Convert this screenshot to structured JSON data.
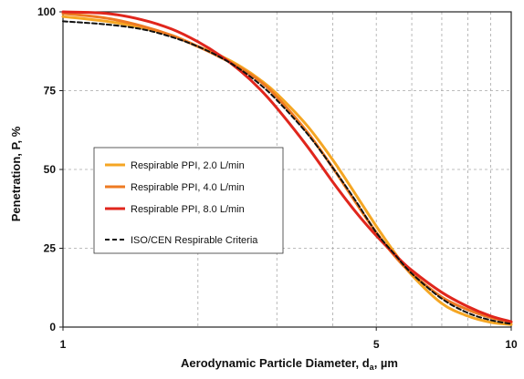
{
  "chart_data": {
    "type": "line",
    "title": "",
    "xlabel": "Aerodynamic Particle Diameter, d",
    "xlabel_subscript": "a",
    "xlabel_unit": ", µm",
    "ylabel": "Penetration, P, %",
    "x_scale": "log",
    "xlim": [
      1,
      10
    ],
    "ylim": [
      0,
      100
    ],
    "x_ticks": [
      1,
      5,
      10
    ],
    "x_tick_labels": [
      "1",
      "5",
      "10"
    ],
    "x_minor_gridlines": [
      2,
      3,
      4,
      6,
      7,
      8,
      9
    ],
    "y_ticks": [
      0,
      25,
      50,
      75,
      100
    ],
    "y_tick_labels": [
      "0",
      "25",
      "50",
      "75",
      "100"
    ],
    "grid": true,
    "legend_position": "center-left",
    "series": [
      {
        "name": "Respirable PPI, 2.0 L/min",
        "color": "#F5A623",
        "dash": "solid",
        "x": [
          1,
          1.25,
          1.5,
          1.75,
          2,
          2.25,
          2.5,
          2.75,
          3,
          3.5,
          4,
          4.5,
          5,
          5.5,
          6,
          7,
          8,
          9,
          10
        ],
        "y": [
          98.5,
          97,
          95,
          92.5,
          89,
          86,
          82.5,
          78.5,
          74,
          64,
          53,
          42,
          32,
          23.5,
          16.5,
          7.5,
          3.5,
          1.5,
          0.8
        ]
      },
      {
        "name": "Respirable PPI, 4.0 L/min",
        "color": "#EE7A22",
        "dash": "solid",
        "x": [
          1,
          1.25,
          1.5,
          1.75,
          2,
          2.25,
          2.5,
          2.75,
          3,
          3.5,
          4,
          4.5,
          5,
          5.5,
          6,
          7,
          8,
          9,
          10
        ],
        "y": [
          99.5,
          98,
          95.5,
          92.5,
          89,
          85.5,
          82,
          78,
          73,
          62,
          50.5,
          39.5,
          30,
          22.5,
          17,
          9.5,
          5.5,
          3,
          1.5
        ]
      },
      {
        "name": "Respirable PPI, 8.0 L/min",
        "color": "#E0261C",
        "dash": "solid",
        "x": [
          1,
          1.25,
          1.5,
          1.75,
          2,
          2.25,
          2.5,
          2.75,
          3,
          3.5,
          4,
          4.5,
          5,
          5.5,
          6,
          7,
          8,
          9,
          10
        ],
        "y": [
          100,
          99.5,
          97.5,
          94.5,
          90.5,
          86,
          81,
          75.5,
          69.5,
          57.5,
          46,
          36.5,
          29,
          23,
          18,
          11,
          6.5,
          3.5,
          1.7
        ]
      },
      {
        "name": "ISO/CEN Respirable Criteria",
        "color": "#111111",
        "dash": "dashed",
        "x": [
          1,
          1.25,
          1.5,
          1.75,
          2,
          2.25,
          2.5,
          2.75,
          3,
          3.5,
          4,
          4.5,
          5,
          5.5,
          6,
          7,
          8,
          9,
          10
        ],
        "y": [
          97,
          96,
          94.5,
          92,
          89,
          85.5,
          81.5,
          77,
          72,
          61.5,
          50.5,
          40,
          30,
          23,
          17,
          9,
          4.5,
          2.2,
          1
        ]
      }
    ]
  }
}
